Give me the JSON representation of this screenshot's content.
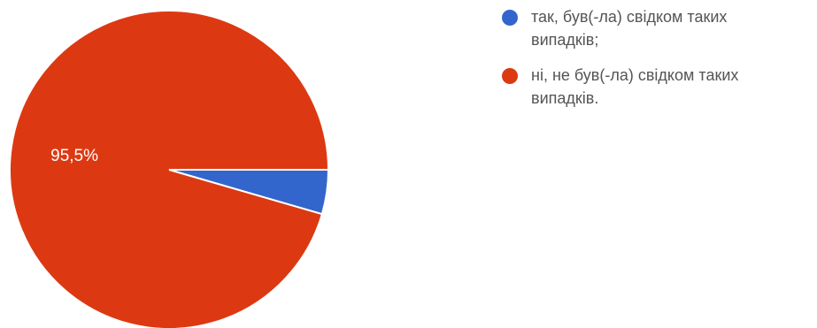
{
  "chart_data": {
    "type": "pie",
    "categories": [
      "так, був(-ла) свідком таких випадків;",
      "ні, не був(-ла) свідком таких випадків."
    ],
    "legend_lines": [
      [
        "так, був(-ла) свідком таких",
        "випадків;"
      ],
      [
        "ні, не був(-ла) свідком таких",
        "випадків."
      ]
    ],
    "values": [
      4.5,
      95.5
    ],
    "slice_labels": [
      "",
      "95,5%"
    ],
    "colors": [
      "#3366cc",
      "#dc3912"
    ],
    "legend_position": "right",
    "start_angle_deg": 90,
    "direction": "clockwise"
  }
}
